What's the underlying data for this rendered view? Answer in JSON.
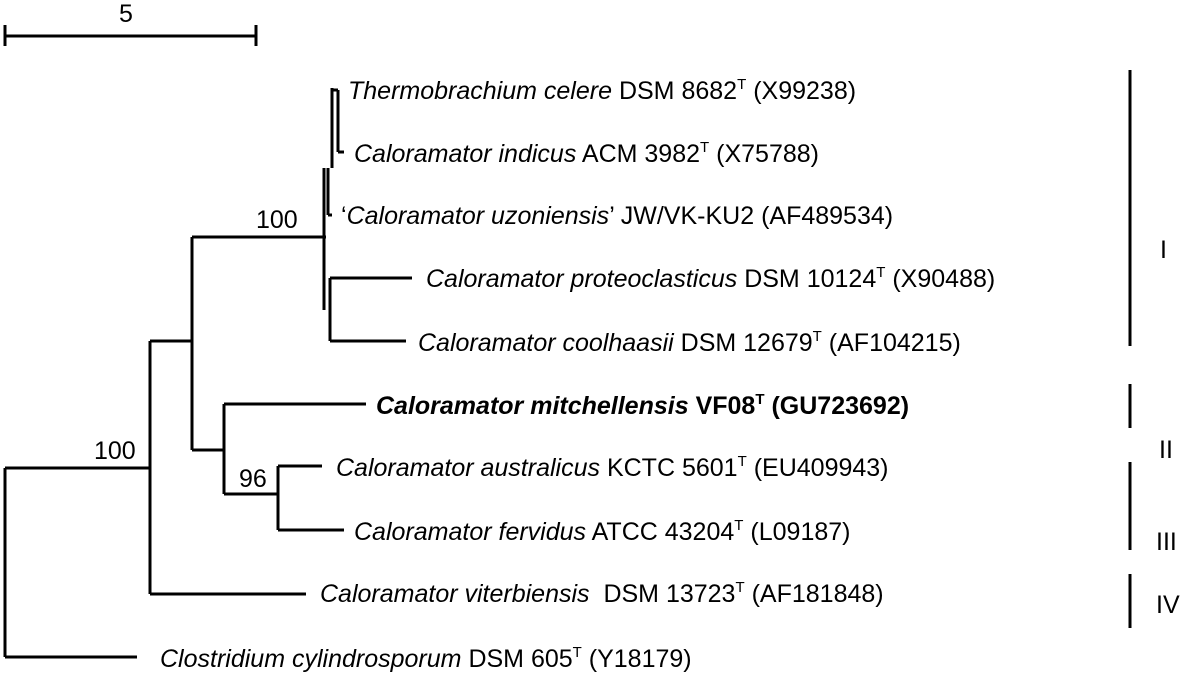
{
  "scale_bar": {
    "label": "5"
  },
  "taxa": [
    {
      "id": "t1",
      "prefix": "",
      "name": "Thermobrachium celere",
      "strain": "DSM 8682",
      "sup": "T",
      "accession": "(X99238)",
      "bold": false
    },
    {
      "id": "t2",
      "prefix": "",
      "name": "Caloramator indicus",
      "strain": "ACM 3982",
      "sup": "T",
      "accession": "(X75788)",
      "bold": false
    },
    {
      "id": "t3",
      "prefix": "‘",
      "name": "Caloramator uzoniensis",
      "strain": "’ JW/VK-KU2",
      "sup": "",
      "accession": "(AF489534)",
      "bold": false
    },
    {
      "id": "t4",
      "prefix": "",
      "name": "Caloramator proteoclasticus",
      "strain": "DSM 10124",
      "sup": "T",
      "accession": "(X90488)",
      "bold": false
    },
    {
      "id": "t5",
      "prefix": "",
      "name": "Caloramator coolhaasii",
      "strain": "DSM 12679",
      "sup": "T",
      "accession": "(AF104215)",
      "bold": false
    },
    {
      "id": "t6",
      "prefix": "",
      "name": "Caloramator mitchellensis",
      "strain": "VF08",
      "sup": "T",
      "accession": "(GU723692)",
      "bold": true
    },
    {
      "id": "t7",
      "prefix": "",
      "name": "Caloramator australicus",
      "strain": "KCTC 5601",
      "sup": "T",
      "accession": "(EU409943)",
      "bold": false
    },
    {
      "id": "t8",
      "prefix": "",
      "name": "Caloramator fervidus",
      "strain": "ATCC 43204",
      "sup": "T",
      "accession": "(L09187)",
      "bold": false
    },
    {
      "id": "t9",
      "prefix": "",
      "name": "Caloramator viterbiensis",
      "strain": " DSM 13723",
      "sup": "T",
      "accession": "(AF181848)",
      "bold": false
    },
    {
      "id": "t10",
      "prefix": "",
      "name": "Clostridium cylindrosporum",
      "strain": "DSM 605",
      "sup": "T",
      "accession": "(Y18179)",
      "bold": false
    }
  ],
  "bootstrap": [
    "100",
    "100",
    "96"
  ],
  "groups": [
    "I",
    "II",
    "III",
    "IV"
  ]
}
